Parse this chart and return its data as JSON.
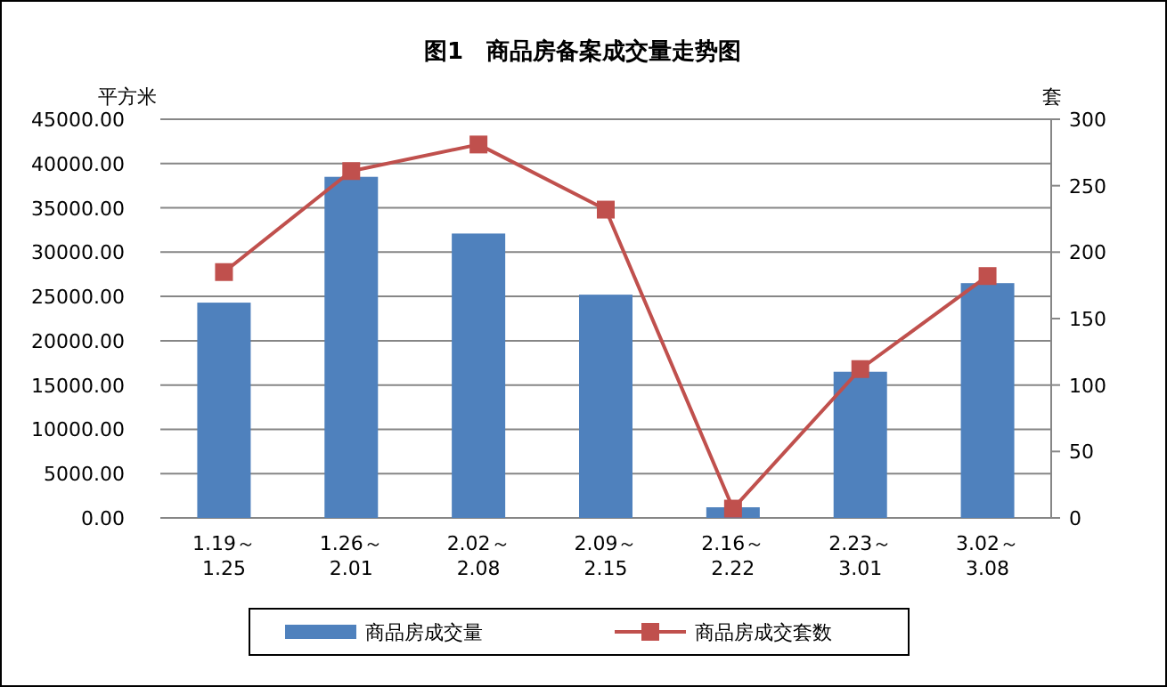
{
  "chart_data": {
    "type": "bar",
    "title": "图1　商品房备案成交量走势图",
    "ylabel": "平方米",
    "y2label": "套",
    "categories": [
      "1.19～\n1.25",
      "1.26～\n2.01",
      "2.02～\n2.08",
      "2.09～\n2.15",
      "2.16～\n2.22",
      "2.23～\n3.01",
      "3.02～\n3.08"
    ],
    "series": [
      {
        "name": "商品房成交量",
        "color": "#4f81bd",
        "values": [
          24300,
          38500,
          32100,
          25200,
          1200,
          16500,
          26500
        ]
      },
      {
        "name": "商品房成交套数",
        "type": "line",
        "axis": "y2",
        "color": "#c0504d",
        "marker": "square",
        "values": [
          185,
          261,
          281,
          232,
          7,
          112,
          182
        ]
      }
    ],
    "ylim": [
      0,
      45000
    ],
    "yticks": [
      {
        "value": 0,
        "label": "0.00"
      },
      {
        "value": 5000,
        "label": "5000.00"
      },
      {
        "value": 10000,
        "label": "10000.00"
      },
      {
        "value": 15000,
        "label": "15000.00"
      },
      {
        "value": 20000,
        "label": "20000.00"
      },
      {
        "value": 25000,
        "label": "25000.00"
      },
      {
        "value": 30000,
        "label": "30000.00"
      },
      {
        "value": 35000,
        "label": "35000.00"
      },
      {
        "value": 40000,
        "label": "40000.00"
      },
      {
        "value": 45000,
        "label": "45000.00"
      }
    ],
    "y2lim": [
      0,
      300
    ],
    "y2ticks": [
      0,
      50,
      100,
      150,
      200,
      250,
      300
    ],
    "grid": "y",
    "legend": "bottom"
  }
}
